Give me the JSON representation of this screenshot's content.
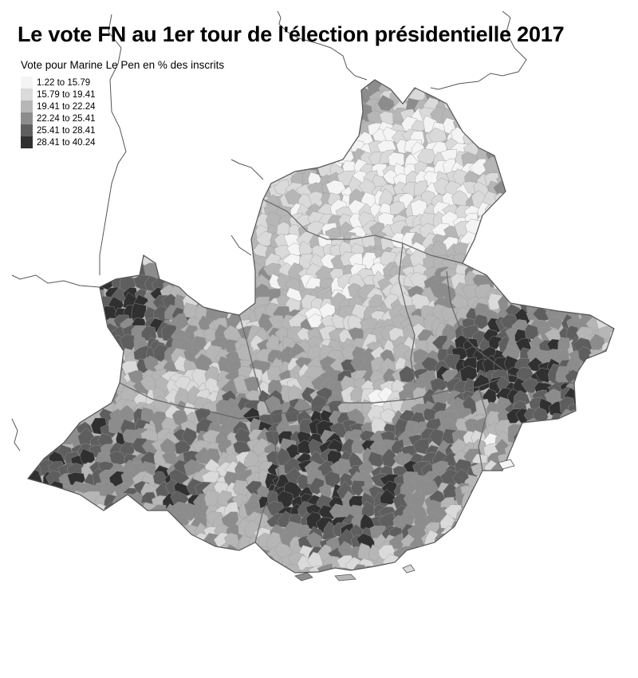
{
  "title": "Le vote FN au 1er tour de l'élection présidentielle 2017",
  "legend": {
    "title": "Vote pour Marine Le Pen en % des inscrits",
    "classes": [
      {
        "label": "1.22 to 15.79",
        "color": "#f4f4f4"
      },
      {
        "label": "15.79 to 19.41",
        "color": "#dadada"
      },
      {
        "label": "19.41 to 22.24",
        "color": "#b6b6b6"
      },
      {
        "label": "22.24 to 25.41",
        "color": "#8c8c8c"
      },
      {
        "label": "25.41 to 28.41",
        "color": "#5e5e5e"
      },
      {
        "label": "28.41 to 40.24",
        "color": "#303030"
      }
    ]
  },
  "colors": {
    "border": "#555555",
    "background": "#ffffff"
  }
}
